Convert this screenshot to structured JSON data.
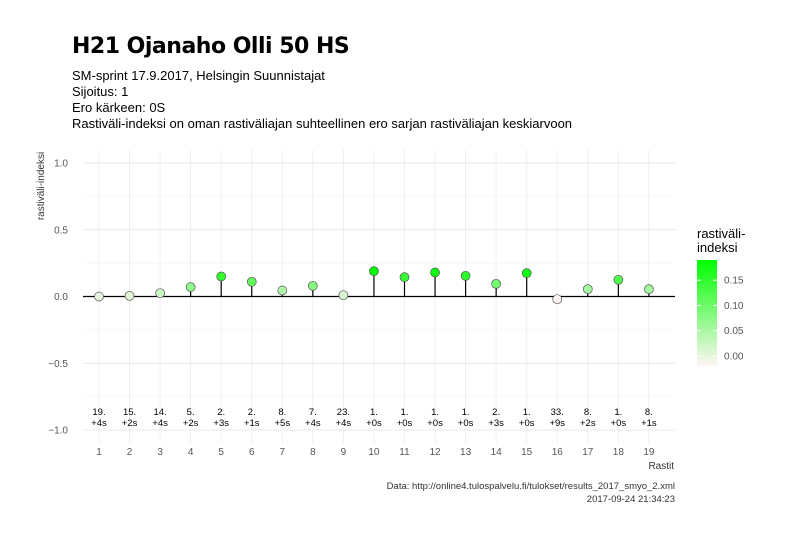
{
  "header": {
    "title": "H21 Ojanaho Olli 50 HS",
    "subtitle_lines": [
      "SM-sprint 17.9.2017, Helsingin Suunnistajat",
      "Sijoitus: 1",
      "Ero kärkeen: 0S",
      "Rastiväli-indeksi on oman rastiväliajan suhteellinen ero sarjan rastiväliajan keskiarvoon"
    ]
  },
  "legend": {
    "title_line1": "rastiväli-",
    "title_line2": "indeksi",
    "ticks": [
      0.0,
      0.05,
      0.1,
      0.15
    ],
    "tick_labels": [
      "0.00",
      "0.05",
      "0.10",
      "0.15"
    ],
    "low_color": "#fff5f5",
    "high_color": "#00ff00"
  },
  "caption": {
    "line1": "Data: http://online4.tulospalvelu.fi/tulokset/results_2017_smyo_2.xml",
    "line2": "2017-09-24 21:34:23"
  },
  "chart_data": {
    "type": "scatter",
    "xlabel": "Rastit",
    "ylabel": "rastiväli-indeksi",
    "ylim": [
      -1.0,
      1.0
    ],
    "yticks": [
      -1.0,
      -0.5,
      0.0,
      0.5,
      1.0
    ],
    "ytick_labels": [
      "−1.0",
      "−0.5",
      "0.0",
      "0.5",
      "1.0"
    ],
    "x": [
      1,
      2,
      3,
      4,
      5,
      6,
      7,
      8,
      9,
      10,
      11,
      12,
      13,
      14,
      15,
      16,
      17,
      18,
      19
    ],
    "values": [
      0.0,
      0.005,
      0.025,
      0.07,
      0.15,
      0.11,
      0.045,
      0.08,
      0.01,
      0.19,
      0.145,
      0.18,
      0.155,
      0.095,
      0.175,
      -0.02,
      0.055,
      0.125,
      0.055
    ],
    "rank_labels": [
      "19.",
      "15.",
      "14.",
      "5.",
      "2.",
      "2.",
      "8.",
      "7.",
      "23.",
      "1.",
      "1.",
      "1.",
      "1.",
      "2.",
      "1.",
      "33.",
      "8.",
      "1.",
      "8."
    ],
    "diff_labels": [
      "+4s",
      "+2s",
      "+4s",
      "+2s",
      "+3s",
      "+1s",
      "+5s",
      "+4s",
      "+4s",
      "+0s",
      "+0s",
      "+0s",
      "+0s",
      "+3s",
      "+0s",
      "+9s",
      "+2s",
      "+0s",
      "+1s"
    ],
    "grid": true,
    "legend_position": "right"
  }
}
